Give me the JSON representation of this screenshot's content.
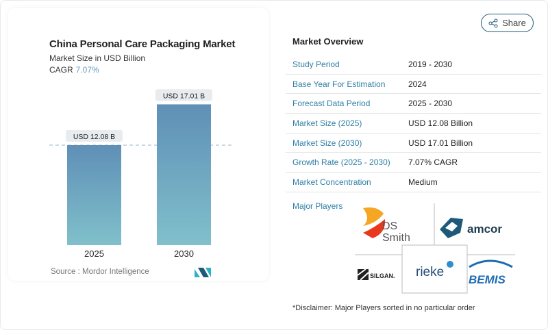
{
  "share": {
    "label": "Share",
    "icon": "share-icon"
  },
  "chart_data": {
    "type": "bar",
    "title": "China Personal Care Packaging Market",
    "subtitle": "Market Size in USD Billion",
    "cagr_label": "CAGR",
    "cagr_value": "7.07%",
    "categories": [
      "2025",
      "2030"
    ],
    "values": [
      12.08,
      17.01
    ],
    "data_labels": [
      "USD 12.08 B",
      "USD 17.01 B"
    ],
    "reference_line": 12.08,
    "grid": false,
    "colors": {
      "bar_top": "#5f8fb6",
      "bar_bottom": "#80c0cb"
    },
    "source": "Source :  Mordor Intelligence"
  },
  "overview": {
    "title": "Market Overview",
    "rows": [
      {
        "label": "Study Period",
        "value": "2019 - 2030"
      },
      {
        "label": "Base Year For Estimation",
        "value": "2024"
      },
      {
        "label": "Forecast Data Period",
        "value": "2025 - 2030"
      },
      {
        "label": "Market Size (2025)",
        "value": "USD 12.08 Billion"
      },
      {
        "label": "Market Size (2030)",
        "value": "USD 17.01 Billion"
      },
      {
        "label": "Growth Rate (2025 - 2030)",
        "value": "7.07% CAGR"
      },
      {
        "label": "Market Concentration",
        "value": "Medium"
      }
    ],
    "major_players_label": "Major Players",
    "players": [
      "DS Smith",
      "amcor",
      "Silgan",
      "rieke",
      "Bemis"
    ],
    "disclaimer": "*Disclaimer: Major Players sorted in no particular order"
  }
}
